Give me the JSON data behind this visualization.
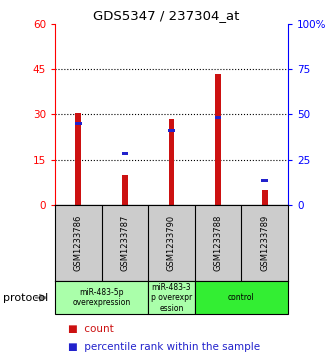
{
  "title": "GDS5347 / 237304_at",
  "samples": [
    "GSM1233786",
    "GSM1233787",
    "GSM1233790",
    "GSM1233788",
    "GSM1233789"
  ],
  "red_bars": [
    30.5,
    10.0,
    28.5,
    43.5,
    5.0
  ],
  "blue_markers_y": [
    27.0,
    17.0,
    24.5,
    29.0,
    8.0
  ],
  "ylim_left": [
    0,
    60
  ],
  "ylim_right": [
    0,
    100
  ],
  "yticks_left": [
    0,
    15,
    30,
    45,
    60
  ],
  "yticks_right": [
    0,
    25,
    50,
    75,
    100
  ],
  "ytick_labels_right": [
    "0",
    "25",
    "50",
    "75",
    "100%"
  ],
  "bar_color": "#cc1111",
  "blue_color": "#2222cc",
  "sample_bg": "#cccccc",
  "bar_width": 0.12,
  "group_info": [
    {
      "indices": [
        0,
        1
      ],
      "label": "miR-483-5p\noverexpression",
      "color": "#aaffaa"
    },
    {
      "indices": [
        2
      ],
      "label": "miR-483-3\np overexpr\nession",
      "color": "#aaffaa"
    },
    {
      "indices": [
        3,
        4
      ],
      "label": "control",
      "color": "#33ee33"
    }
  ],
  "protocol_label": "protocol",
  "legend_count": "count",
  "legend_percentile": "percentile rank within the sample"
}
